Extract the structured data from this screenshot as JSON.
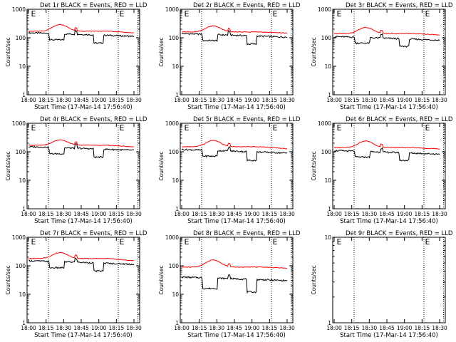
{
  "figure": {
    "y_label": "Counts/sec",
    "x_label": "Start Time (17-Mar-14 17:56:40)",
    "marker_letter": "E",
    "time_ticks": [
      "18:00",
      "18:15",
      "18:30",
      "18:45",
      "19:00",
      "18:15",
      "18:30"
    ],
    "y_ticks": [
      "1",
      "10",
      "100",
      "1000"
    ],
    "colors": {
      "events": "#000000",
      "lld": "#ff0000",
      "axes": "#000000"
    }
  },
  "chart_data": [
    {
      "type": "line",
      "title": "Det 1r BLACK = Events, RED = LLD",
      "ylim_log10": [
        0,
        3
      ],
      "has_data": true,
      "event_levels": {
        "base": 150,
        "dips": [
          {
            "from": 0.2,
            "to": 0.34,
            "value": 85
          },
          {
            "from": 0.62,
            "to": 0.71,
            "value": 65
          }
        ]
      },
      "lld_levels": {
        "base": 170,
        "bump_peak": 290,
        "bump_center": 0.3,
        "tail": 140
      },
      "series": [
        {
          "name": "Events",
          "color": "#000000"
        },
        {
          "name": "LLD",
          "color": "#ff0000"
        }
      ]
    },
    {
      "type": "line",
      "title": "Det 2r BLACK = Events, RED = LLD",
      "ylim_log10": [
        0,
        3
      ],
      "has_data": true,
      "event_levels": {
        "base": 140,
        "dips": [
          {
            "from": 0.2,
            "to": 0.34,
            "value": 80
          },
          {
            "from": 0.62,
            "to": 0.71,
            "value": 60
          }
        ]
      },
      "lld_levels": {
        "base": 160,
        "bump_peak": 260,
        "bump_center": 0.3,
        "tail": 140
      },
      "series": [
        {
          "name": "Events",
          "color": "#000000"
        },
        {
          "name": "LLD",
          "color": "#ff0000"
        }
      ]
    },
    {
      "type": "line",
      "title": "Det 3r BLACK = Events, RED = LLD",
      "ylim_log10": [
        0,
        3
      ],
      "has_data": true,
      "event_levels": {
        "base": 110,
        "dips": [
          {
            "from": 0.2,
            "to": 0.34,
            "value": 65
          },
          {
            "from": 0.62,
            "to": 0.71,
            "value": 50
          }
        ]
      },
      "lld_levels": {
        "base": 140,
        "bump_peak": 230,
        "bump_center": 0.3,
        "tail": 120
      },
      "series": [
        {
          "name": "Events",
          "color": "#000000"
        },
        {
          "name": "LLD",
          "color": "#ff0000"
        }
      ]
    },
    {
      "type": "line",
      "title": "Det 4r BLACK = Events, RED = LLD",
      "ylim_log10": [
        0,
        3
      ],
      "has_data": true,
      "event_levels": {
        "base": 150,
        "dips": [
          {
            "from": 0.2,
            "to": 0.34,
            "value": 85
          },
          {
            "from": 0.62,
            "to": 0.71,
            "value": 65
          }
        ]
      },
      "lld_levels": {
        "base": 170,
        "bump_peak": 260,
        "bump_center": 0.3,
        "tail": 140
      },
      "series": [
        {
          "name": "Events",
          "color": "#000000"
        },
        {
          "name": "LLD",
          "color": "#ff0000"
        }
      ]
    },
    {
      "type": "line",
      "title": "Det 5r BLACK = Events, RED = LLD",
      "ylim_log10": [
        0,
        3
      ],
      "has_data": true,
      "event_levels": {
        "base": 120,
        "dips": [
          {
            "from": 0.2,
            "to": 0.34,
            "value": 70
          },
          {
            "from": 0.62,
            "to": 0.71,
            "value": 50
          }
        ]
      },
      "lld_levels": {
        "base": 150,
        "bump_peak": 250,
        "bump_center": 0.3,
        "tail": 120
      },
      "series": [
        {
          "name": "Events",
          "color": "#000000"
        },
        {
          "name": "LLD",
          "color": "#ff0000"
        }
      ]
    },
    {
      "type": "line",
      "title": "Det 6r BLACK = Events, RED = LLD",
      "ylim_log10": [
        0,
        3
      ],
      "has_data": true,
      "event_levels": {
        "base": 110,
        "dips": [
          {
            "from": 0.2,
            "to": 0.34,
            "value": 65
          },
          {
            "from": 0.62,
            "to": 0.71,
            "value": 50
          }
        ]
      },
      "lld_levels": {
        "base": 140,
        "bump_peak": 240,
        "bump_center": 0.3,
        "tail": 120
      },
      "series": [
        {
          "name": "Events",
          "color": "#000000"
        },
        {
          "name": "LLD",
          "color": "#ff0000"
        }
      ]
    },
    {
      "type": "line",
      "title": "Det 7r BLACK = Events, RED = LLD",
      "ylim_log10": [
        0,
        3
      ],
      "has_data": true,
      "event_levels": {
        "base": 150,
        "dips": [
          {
            "from": 0.2,
            "to": 0.34,
            "value": 85
          },
          {
            "from": 0.62,
            "to": 0.71,
            "value": 65
          }
        ]
      },
      "lld_levels": {
        "base": 180,
        "bump_peak": 290,
        "bump_center": 0.3,
        "tail": 140
      },
      "series": [
        {
          "name": "Events",
          "color": "#000000"
        },
        {
          "name": "LLD",
          "color": "#ff0000"
        }
      ]
    },
    {
      "type": "line",
      "title": "Det 8r BLACK = Events, RED = LLD",
      "ylim_log10": [
        0,
        3
      ],
      "has_data": true,
      "event_levels": {
        "base": 40,
        "dips": [
          {
            "from": 0.2,
            "to": 0.34,
            "value": 16
          },
          {
            "from": 0.62,
            "to": 0.71,
            "value": 12
          }
        ]
      },
      "lld_levels": {
        "base": 90,
        "bump_peak": 160,
        "bump_center": 0.3,
        "tail": 80
      },
      "series": [
        {
          "name": "Events",
          "color": "#000000"
        },
        {
          "name": "LLD",
          "color": "#ff0000"
        }
      ]
    },
    {
      "type": "line",
      "title": "Det 9r BLACK = Events, RED = LLD",
      "ylim_log10": [
        0,
        1
      ],
      "has_data": false,
      "y_tick_labels": [
        "1",
        "10"
      ],
      "series": []
    }
  ]
}
